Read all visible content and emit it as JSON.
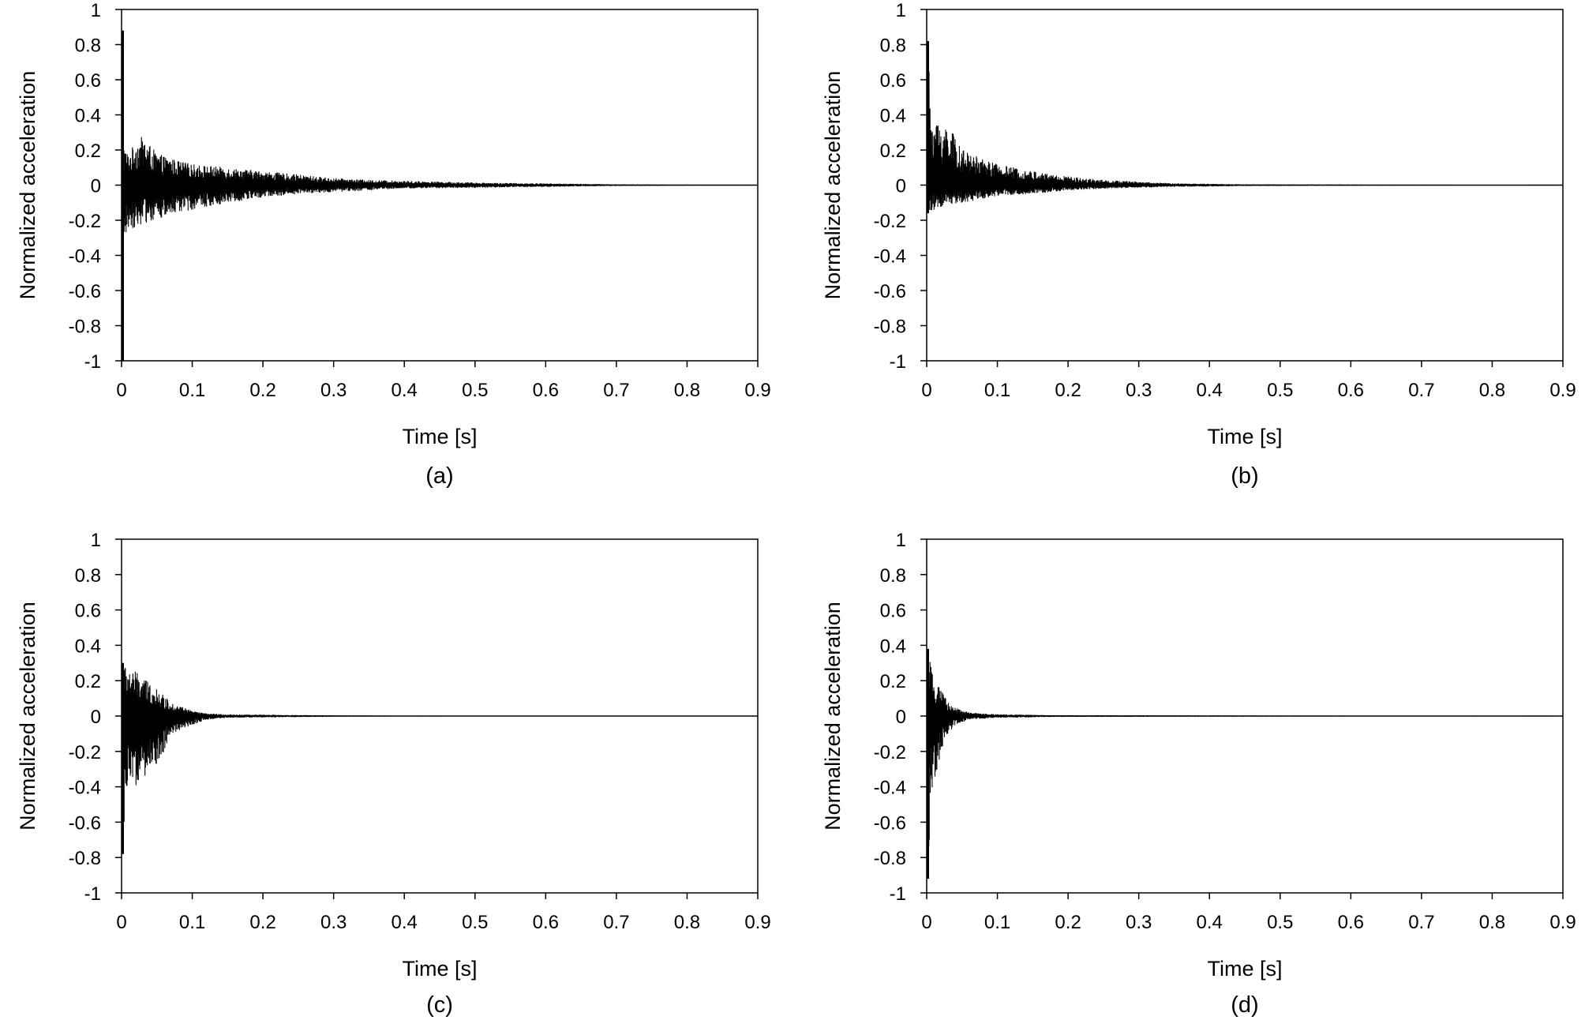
{
  "chart_data": [
    {
      "type": "line",
      "caption": "(a)",
      "xlabel": "Time [s]",
      "ylabel": "Normalized acceleration",
      "xlim": [
        0,
        0.9
      ],
      "ylim": [
        -1,
        1
      ],
      "xticks": [
        "0",
        "0.1",
        "0.2",
        "0.3",
        "0.4",
        "0.5",
        "0.6",
        "0.7",
        "0.8",
        "0.9"
      ],
      "yticks": [
        "1",
        "0.8",
        "0.6",
        "0.4",
        "0.2",
        "0",
        "-0.2",
        "-0.4",
        "-0.6",
        "-0.8",
        "-1"
      ],
      "grid": false,
      "series": [
        {
          "x": [
            0,
            0.001,
            0.002,
            0.004,
            0.006,
            0.01,
            0.02,
            0.03,
            0.05,
            0.08,
            0.1,
            0.15,
            0.2,
            0.25,
            0.3,
            0.35,
            0.4,
            0.5,
            0.6,
            0.7,
            0.8,
            0.9
          ],
          "envelope_upper": [
            0.88,
            0.88,
            0.3,
            0.22,
            0.2,
            0.18,
            0.25,
            0.28,
            0.18,
            0.14,
            0.12,
            0.1,
            0.08,
            0.06,
            0.04,
            0.03,
            0.025,
            0.015,
            0.01,
            0.005,
            0.003,
            0.002
          ],
          "envelope_lower": [
            -1.0,
            -1.0,
            -0.32,
            -0.3,
            -0.28,
            -0.25,
            -0.24,
            -0.22,
            -0.2,
            -0.16,
            -0.14,
            -0.1,
            -0.07,
            -0.05,
            -0.04,
            -0.03,
            -0.02,
            -0.015,
            -0.01,
            -0.005,
            -0.003,
            -0.002
          ]
        }
      ]
    },
    {
      "type": "line",
      "caption": "(b)",
      "xlabel": "Time [s]",
      "ylabel": "Normalized acceleration",
      "xlim": [
        0,
        0.9
      ],
      "ylim": [
        -1,
        1
      ],
      "xticks": [
        "0",
        "0.1",
        "0.2",
        "0.3",
        "0.4",
        "0.5",
        "0.6",
        "0.7",
        "0.8",
        "0.9"
      ],
      "yticks": [
        "1",
        "0.8",
        "0.6",
        "0.4",
        "0.2",
        "0",
        "-0.2",
        "-0.4",
        "-0.6",
        "-0.8",
        "-1"
      ],
      "grid": false,
      "series": [
        {
          "x": [
            0,
            0.002,
            0.005,
            0.01,
            0.02,
            0.03,
            0.05,
            0.08,
            0.1,
            0.15,
            0.2,
            0.25,
            0.3,
            0.35,
            0.4,
            0.45,
            0.9
          ],
          "envelope_upper": [
            0.82,
            0.82,
            0.45,
            0.4,
            0.35,
            0.35,
            0.2,
            0.15,
            0.12,
            0.08,
            0.05,
            0.03,
            0.02,
            0.01,
            0.008,
            0.005,
            0.0
          ],
          "envelope_lower": [
            -0.16,
            -0.16,
            -0.15,
            -0.14,
            -0.13,
            -0.12,
            -0.1,
            -0.08,
            -0.06,
            -0.05,
            -0.03,
            -0.02,
            -0.015,
            -0.01,
            -0.008,
            -0.005,
            0.0
          ]
        }
      ]
    },
    {
      "type": "line",
      "caption": "(c)",
      "xlabel": "Time [s]",
      "ylabel": "Normalized acceleration",
      "xlim": [
        0,
        0.9
      ],
      "ylim": [
        -1,
        1
      ],
      "xticks": [
        "0",
        "0.1",
        "0.2",
        "0.3",
        "0.4",
        "0.5",
        "0.6",
        "0.7",
        "0.8",
        "0.9"
      ],
      "yticks": [
        "1",
        "0.8",
        "0.6",
        "0.4",
        "0.2",
        "0",
        "-0.2",
        "-0.4",
        "-0.6",
        "-0.8",
        "-1"
      ],
      "grid": false,
      "series": [
        {
          "x": [
            0,
            0.002,
            0.005,
            0.01,
            0.02,
            0.03,
            0.05,
            0.07,
            0.1,
            0.12,
            0.15,
            0.2,
            0.25,
            0.3,
            0.35,
            0.4,
            0.45,
            0.9
          ],
          "envelope_upper": [
            0.3,
            0.3,
            0.28,
            0.27,
            0.25,
            0.22,
            0.15,
            0.08,
            0.03,
            0.015,
            0.01,
            0.008,
            0.006,
            0.004,
            0.003,
            0.002,
            0.0,
            0.0
          ],
          "envelope_lower": [
            -0.78,
            -0.78,
            -0.45,
            -0.42,
            -0.4,
            -0.35,
            -0.3,
            -0.1,
            -0.05,
            -0.02,
            -0.01,
            -0.008,
            -0.006,
            -0.004,
            -0.003,
            -0.002,
            0.0,
            0.0
          ]
        }
      ]
    },
    {
      "type": "line",
      "caption": "(d)",
      "xlabel": "Time [s]",
      "ylabel": "Normalized acceleration",
      "xlim": [
        0,
        0.9
      ],
      "ylim": [
        -1,
        1
      ],
      "xticks": [
        "0",
        "0.1",
        "0.2",
        "0.3",
        "0.4",
        "0.5",
        "0.6",
        "0.7",
        "0.8",
        "0.9"
      ],
      "yticks": [
        "1",
        "0.8",
        "0.6",
        "0.4",
        "0.2",
        "0",
        "-0.2",
        "-0.4",
        "-0.6",
        "-0.8",
        "-1"
      ],
      "grid": false,
      "series": [
        {
          "x": [
            0,
            0.002,
            0.005,
            0.01,
            0.015,
            0.02,
            0.03,
            0.04,
            0.06,
            0.08,
            0.1,
            0.14,
            0.18,
            0.9
          ],
          "envelope_upper": [
            0.38,
            0.38,
            0.3,
            0.2,
            0.18,
            0.15,
            0.08,
            0.05,
            0.02,
            0.015,
            0.01,
            0.008,
            0.005,
            0.0
          ],
          "envelope_lower": [
            -0.92,
            -0.92,
            -0.45,
            -0.4,
            -0.3,
            -0.2,
            -0.1,
            -0.05,
            -0.02,
            -0.015,
            -0.01,
            -0.008,
            -0.005,
            0.0
          ]
        }
      ]
    }
  ]
}
